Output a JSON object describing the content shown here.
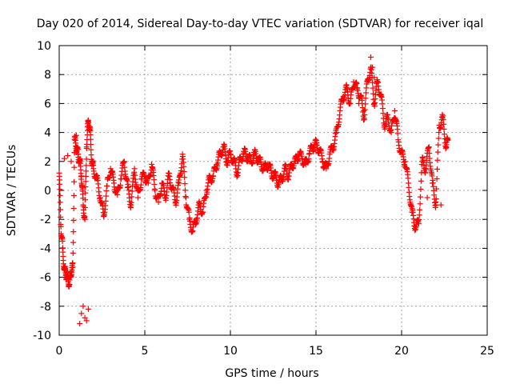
{
  "chart_data": {
    "type": "scatter",
    "title": "Day 020 of 2014, Sidereal Day-to-day VTEC variation (SDTVAR) for receiver iqal",
    "xlabel": "GPS time / hours",
    "ylabel": "SDTVAR / TECUs",
    "xlim": [
      0,
      25
    ],
    "ylim": [
      -10,
      10
    ],
    "xticks": [
      0,
      5,
      10,
      15,
      20,
      25
    ],
    "yticks": [
      -10,
      -8,
      -6,
      -4,
      -2,
      0,
      2,
      4,
      6,
      8,
      10
    ],
    "grid": true,
    "marker": "+",
    "series": [
      {
        "name": "SDTVAR",
        "color": "#ff0000",
        "x": [
          0.0,
          0.1,
          0.2,
          0.3,
          0.4,
          0.5,
          0.6,
          0.7,
          0.8,
          0.9,
          1.0,
          1.1,
          1.2,
          1.3,
          1.4,
          1.5,
          1.6,
          1.7,
          1.8,
          1.9,
          2.0,
          2.2,
          2.4,
          2.6,
          2.8,
          3.0,
          3.2,
          3.4,
          3.6,
          3.8,
          4.0,
          4.2,
          4.4,
          4.6,
          4.8,
          5.0,
          5.2,
          5.4,
          5.6,
          5.8,
          6.0,
          6.2,
          6.4,
          6.6,
          6.8,
          7.0,
          7.2,
          7.4,
          7.6,
          7.8,
          8.0,
          8.2,
          8.4,
          8.6,
          8.8,
          9.0,
          9.2,
          9.4,
          9.6,
          9.8,
          10.0,
          10.2,
          10.4,
          10.6,
          10.8,
          11.0,
          11.2,
          11.4,
          11.6,
          11.8,
          12.0,
          12.2,
          12.4,
          12.6,
          12.8,
          13.0,
          13.2,
          13.4,
          13.6,
          13.8,
          14.0,
          14.2,
          14.4,
          14.6,
          14.8,
          15.0,
          15.2,
          15.4,
          15.6,
          15.8,
          16.0,
          16.2,
          16.4,
          16.6,
          16.8,
          17.0,
          17.2,
          17.4,
          17.6,
          17.8,
          18.0,
          18.2,
          18.4,
          18.6,
          18.8,
          19.0,
          19.2,
          19.4,
          19.6,
          19.8,
          20.0,
          20.2,
          20.4,
          20.6,
          20.8,
          21.0,
          21.2,
          21.4,
          21.6,
          21.8,
          22.0,
          22.2,
          22.4,
          22.6,
          22.7,
          1.2,
          1.3,
          1.4,
          1.5,
          1.6,
          1.7,
          0.3,
          0.5,
          0.7,
          0.9,
          1.0,
          18.2,
          18.3,
          18.4,
          17.5,
          17.8,
          20.3,
          21.5,
          22.0,
          22.3
        ],
        "y": [
          1.2,
          -2.5,
          -4.0,
          -5.5,
          -5.8,
          -6.0,
          -6.5,
          -5.6,
          -5.3,
          3.5,
          3.0,
          2.5,
          2.0,
          1.0,
          -1.0,
          -2.0,
          3.0,
          4.8,
          4.2,
          2.0,
          1.5,
          0.8,
          -0.5,
          -1.8,
          0.3,
          1.5,
          0.5,
          -0.3,
          0.8,
          2.0,
          0.2,
          -1.0,
          1.5,
          -0.5,
          0.8,
          1.0,
          0.5,
          1.8,
          0.0,
          -0.8,
          0.5,
          -0.5,
          1.0,
          0.2,
          -0.8,
          0.5,
          2.5,
          -0.5,
          -2.0,
          -2.8,
          -2.0,
          -1.0,
          -1.5,
          0.0,
          0.8,
          1.0,
          1.8,
          2.5,
          3.0,
          2.0,
          2.5,
          2.0,
          1.2,
          2.2,
          2.6,
          2.3,
          2.0,
          2.5,
          2.2,
          1.8,
          1.5,
          1.8,
          1.2,
          1.0,
          0.5,
          0.8,
          1.5,
          1.0,
          1.8,
          2.0,
          2.5,
          2.2,
          1.8,
          2.5,
          3.0,
          3.2,
          2.8,
          2.0,
          1.5,
          2.5,
          3.0,
          4.0,
          5.5,
          6.5,
          7.0,
          6.0,
          7.5,
          7.0,
          6.5,
          5.0,
          7.5,
          8.5,
          6.0,
          7.5,
          6.5,
          4.5,
          5.0,
          4.0,
          5.5,
          3.5,
          2.5,
          2.0,
          0.5,
          -1.5,
          -2.5,
          -2.3,
          2.0,
          1.5,
          3.0,
          0.5,
          -1.0,
          4.5,
          5.0,
          3.0,
          3.5,
          -9.2,
          -8.5,
          -8.0,
          -8.8,
          -9.0,
          -8.2,
          2.2,
          2.4,
          2.0,
          2.6,
          3.8,
          9.2,
          8.5,
          7.8,
          6.0,
          5.5,
          1.5,
          -0.5,
          -0.8,
          -1.0
        ]
      }
    ]
  }
}
